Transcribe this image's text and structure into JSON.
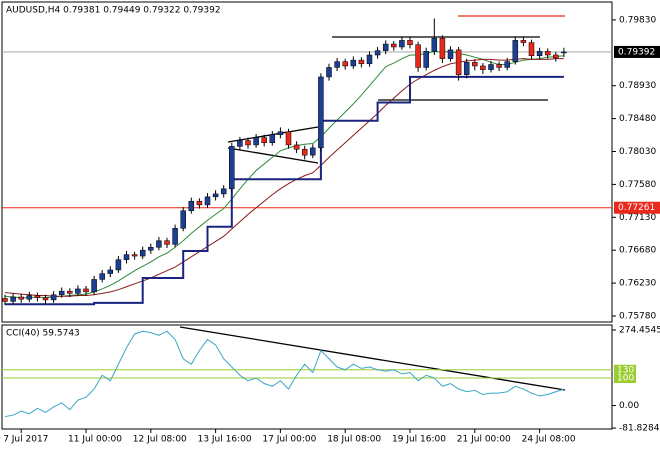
{
  "chart_data": {
    "type": "candlestick",
    "title": "AUDUSD,H4 0.79381 0.79449 0.79322 0.79392",
    "categories": [
      null,
      null,
      "7 Jul 2017",
      null,
      null,
      null,
      null,
      null,
      null,
      null,
      "11 Jul 00:00",
      null,
      null,
      null,
      null,
      null,
      null,
      null,
      "12 Jul 08:00",
      null,
      null,
      null,
      null,
      null,
      null,
      null,
      "13 Jul 16:00",
      null,
      null,
      null,
      null,
      null,
      null,
      null,
      "17 Jul 00:00",
      null,
      null,
      null,
      null,
      null,
      null,
      null,
      "18 Jul 08:00",
      null,
      null,
      null,
      null,
      null,
      null,
      null,
      "19 Jul 16:00",
      null,
      null,
      null,
      null,
      null,
      null,
      null,
      "21 Jul 00:00",
      null,
      null,
      null,
      null,
      null,
      null,
      null,
      "24 Jul 08:00",
      null,
      null,
      null
    ],
    "ohlc": [
      [
        0.7602,
        0.7607,
        0.7593,
        0.7598
      ],
      [
        0.7598,
        0.7609,
        0.7594,
        0.7604
      ],
      [
        0.7604,
        0.7608,
        0.7596,
        0.7601
      ],
      [
        0.7601,
        0.7611,
        0.7597,
        0.7606
      ],
      [
        0.7606,
        0.761,
        0.7598,
        0.7603
      ],
      [
        0.7603,
        0.7607,
        0.7594,
        0.76
      ],
      [
        0.76,
        0.7612,
        0.7596,
        0.7607
      ],
      [
        0.7607,
        0.7617,
        0.7603,
        0.7612
      ],
      [
        0.7612,
        0.7616,
        0.7604,
        0.7609
      ],
      [
        0.7609,
        0.762,
        0.7605,
        0.7615
      ],
      [
        0.7615,
        0.7619,
        0.7606,
        0.7611
      ],
      [
        0.7611,
        0.7633,
        0.7607,
        0.7628
      ],
      [
        0.7628,
        0.7641,
        0.7624,
        0.7636
      ],
      [
        0.7636,
        0.7646,
        0.7631,
        0.7641
      ],
      [
        0.7641,
        0.766,
        0.7637,
        0.7655
      ],
      [
        0.7655,
        0.7667,
        0.765,
        0.7662
      ],
      [
        0.7662,
        0.7666,
        0.7655,
        0.766
      ],
      [
        0.766,
        0.7673,
        0.7656,
        0.7668
      ],
      [
        0.7668,
        0.7677,
        0.7663,
        0.7672
      ],
      [
        0.7672,
        0.7686,
        0.7668,
        0.7681
      ],
      [
        0.7681,
        0.7685,
        0.7671,
        0.7676
      ],
      [
        0.7676,
        0.7703,
        0.7672,
        0.7698
      ],
      [
        0.7698,
        0.7727,
        0.7694,
        0.7722
      ],
      [
        0.7722,
        0.774,
        0.7718,
        0.7735
      ],
      [
        0.7735,
        0.7739,
        0.7725,
        0.773
      ],
      [
        0.773,
        0.7746,
        0.7726,
        0.7741
      ],
      [
        0.7741,
        0.775,
        0.7736,
        0.7745
      ],
      [
        0.7745,
        0.7757,
        0.774,
        0.7752
      ],
      [
        0.7752,
        0.7815,
        0.7748,
        0.781
      ],
      [
        0.781,
        0.7823,
        0.7805,
        0.7818
      ],
      [
        0.7818,
        0.7822,
        0.7807,
        0.7812
      ],
      [
        0.7812,
        0.7827,
        0.7808,
        0.7822
      ],
      [
        0.7822,
        0.7826,
        0.781,
        0.7815
      ],
      [
        0.7815,
        0.7831,
        0.7811,
        0.7826
      ],
      [
        0.7826,
        0.7836,
        0.7821,
        0.783
      ],
      [
        0.783,
        0.7834,
        0.7807,
        0.7812
      ],
      [
        0.7812,
        0.7817,
        0.7801,
        0.7806
      ],
      [
        0.7806,
        0.7811,
        0.7792,
        0.7798
      ],
      [
        0.7798,
        0.7813,
        0.7794,
        0.7808
      ],
      [
        0.7808,
        0.791,
        0.7803,
        0.7905
      ],
      [
        0.7905,
        0.7923,
        0.79,
        0.7918
      ],
      [
        0.7918,
        0.7931,
        0.7913,
        0.7926
      ],
      [
        0.7926,
        0.793,
        0.7915,
        0.792
      ],
      [
        0.792,
        0.7933,
        0.7916,
        0.7928
      ],
      [
        0.7928,
        0.7932,
        0.7918,
        0.7923
      ],
      [
        0.7923,
        0.794,
        0.7919,
        0.7935
      ],
      [
        0.7935,
        0.7946,
        0.793,
        0.7941
      ],
      [
        0.7941,
        0.7955,
        0.7936,
        0.795
      ],
      [
        0.795,
        0.7954,
        0.7941,
        0.7946
      ],
      [
        0.7946,
        0.796,
        0.7942,
        0.7955
      ],
      [
        0.7955,
        0.7959,
        0.7944,
        0.7949
      ],
      [
        0.7949,
        0.7953,
        0.7912,
        0.7918
      ],
      [
        0.7918,
        0.7945,
        0.7914,
        0.794
      ],
      [
        0.794,
        0.7985,
        0.7935,
        0.7958
      ],
      [
        0.7958,
        0.7962,
        0.7924,
        0.793
      ],
      [
        0.793,
        0.7947,
        0.7926,
        0.7942
      ],
      [
        0.7942,
        0.7946,
        0.79,
        0.7908
      ],
      [
        0.7908,
        0.793,
        0.7903,
        0.7925
      ],
      [
        0.7925,
        0.7929,
        0.7914,
        0.792
      ],
      [
        0.792,
        0.7924,
        0.7909,
        0.7915
      ],
      [
        0.7915,
        0.7927,
        0.7911,
        0.7922
      ],
      [
        0.7922,
        0.7926,
        0.7913,
        0.7918
      ],
      [
        0.7918,
        0.7931,
        0.7914,
        0.7926
      ],
      [
        0.7926,
        0.796,
        0.7922,
        0.7955
      ],
      [
        0.7955,
        0.7959,
        0.7947,
        0.7952
      ],
      [
        0.7952,
        0.7956,
        0.7929,
        0.7934
      ],
      [
        0.7934,
        0.7945,
        0.793,
        0.794
      ],
      [
        0.794,
        0.7944,
        0.793,
        0.7935
      ],
      [
        0.7935,
        0.7939,
        0.7926,
        0.7931
      ],
      [
        0.79381,
        0.79449,
        0.79322,
        0.79392
      ]
    ],
    "up_color": "#1c3f94",
    "down_color": "#e8291c",
    "lines": [
      {
        "color": "#2e8b3a",
        "step": false,
        "values": [
          0.7605,
          0.7604,
          0.7603,
          0.7603,
          0.7604,
          0.7603,
          0.7604,
          0.7605,
          0.7606,
          0.7607,
          0.7608,
          0.7611,
          0.7615,
          0.762,
          0.7626,
          0.7633,
          0.764,
          0.7646,
          0.7652,
          0.7659,
          0.7664,
          0.7672,
          0.7681,
          0.7691,
          0.77,
          0.7709,
          0.7717,
          0.7725,
          0.7738,
          0.7752,
          0.7765,
          0.7777,
          0.7786,
          0.7795,
          0.7804,
          0.7808,
          0.7811,
          0.7813,
          0.7814,
          0.7823,
          0.7835,
          0.7846,
          0.7857,
          0.7868,
          0.788,
          0.7893,
          0.7906,
          0.7919,
          0.7924,
          0.793,
          0.7935,
          0.7935,
          0.7937,
          0.794,
          0.7939,
          0.794,
          0.7937,
          0.7935,
          0.7932,
          0.7929,
          0.7925,
          0.7922,
          0.7922,
          0.7925,
          0.7928,
          0.7929,
          0.793,
          0.7932,
          0.7933,
          0.7934
        ]
      },
      {
        "color": "#8b1a1a",
        "step": false,
        "values": [
          0.761,
          0.7609,
          0.7608,
          0.7607,
          0.7606,
          0.7606,
          0.7605,
          0.7605,
          0.7605,
          0.7606,
          0.7606,
          0.7607,
          0.7609,
          0.7611,
          0.7614,
          0.7618,
          0.7622,
          0.7626,
          0.763,
          0.7635,
          0.764,
          0.7645,
          0.7652,
          0.7659,
          0.7666,
          0.7673,
          0.768,
          0.7687,
          0.7697,
          0.7707,
          0.7717,
          0.7726,
          0.7735,
          0.7744,
          0.7752,
          0.7759,
          0.7765,
          0.777,
          0.7774,
          0.7784,
          0.7795,
          0.7805,
          0.7815,
          0.7825,
          0.7835,
          0.7845,
          0.7855,
          0.7866,
          0.7876,
          0.7886,
          0.7895,
          0.7902,
          0.7908,
          0.7914,
          0.7919,
          0.7923,
          0.7925,
          0.7927,
          0.7928,
          0.7929,
          0.7929,
          0.7928,
          0.7928,
          0.7929,
          0.793,
          0.7929,
          0.7929,
          0.7929,
          0.793,
          0.793
        ]
      },
      {
        "color": "#1a237e",
        "step": true,
        "values": [
          0.7594,
          0.7594,
          0.7594,
          0.7594,
          0.7594,
          0.7594,
          0.7594,
          0.7594,
          0.7594,
          0.7594,
          0.7594,
          0.7596,
          0.7596,
          0.7596,
          0.7596,
          0.7596,
          0.7596,
          0.763,
          0.763,
          0.763,
          0.763,
          0.763,
          0.7667,
          0.7667,
          0.7667,
          0.77,
          0.77,
          0.77,
          0.7765,
          0.7765,
          0.7765,
          0.7765,
          0.7765,
          0.7765,
          0.7765,
          0.7765,
          0.7765,
          0.7765,
          0.7765,
          0.7845,
          0.7845,
          0.7845,
          0.7845,
          0.7845,
          0.7845,
          0.7845,
          0.787,
          0.787,
          0.787,
          0.787,
          0.7905,
          0.7905,
          0.7905,
          0.7905,
          0.7905,
          0.7905,
          0.7905,
          0.7905,
          0.7905,
          0.7905,
          0.7905,
          0.7905,
          0.7905,
          0.7905,
          0.7905,
          0.7905,
          0.7905,
          0.7905,
          0.7905,
          0.7905
        ]
      }
    ],
    "ylim": [
      0.75698,
      0.80075
    ],
    "yticks": [
      {
        "value": 0.7983,
        "label": "0.79830"
      },
      {
        "value": 0.7893,
        "label": "0.78930"
      },
      {
        "value": 0.7848,
        "label": "0.78480"
      },
      {
        "value": 0.7803,
        "label": "0.78030"
      },
      {
        "value": 0.7758,
        "label": "0.77580"
      },
      {
        "value": 0.7713,
        "label": "0.77130"
      },
      {
        "value": 0.7668,
        "label": "0.76680"
      },
      {
        "value": 0.7623,
        "label": "0.76230"
      },
      {
        "value": 0.7578,
        "label": "0.75780"
      }
    ],
    "last_price": {
      "value": 0.79392,
      "label": "0.79392"
    },
    "hline": {
      "value": 0.77261,
      "label": "0.77261",
      "color": "#e8291c"
    },
    "indicator": {
      "label": "CCI(40) 59.5743",
      "color": "#3aa6c8",
      "ylim": [
        -85.2,
        292.6
      ],
      "yticks": [
        274.4545,
        {
          "value": 0,
          "label": "0.00"
        },
        -81.8284
      ],
      "levels": [
        130,
        100
      ],
      "level_color": "#9acd32",
      "values": [
        -40,
        -35,
        -20,
        -30,
        -10,
        -25,
        -5,
        10,
        -15,
        20,
        30,
        60,
        110,
        90,
        150,
        210,
        260,
        270,
        265,
        255,
        270,
        240,
        170,
        150,
        200,
        240,
        220,
        170,
        140,
        110,
        90,
        100,
        80,
        70,
        90,
        60,
        110,
        150,
        120,
        200,
        170,
        140,
        130,
        150,
        135,
        140,
        130,
        125,
        130,
        115,
        120,
        90,
        110,
        100,
        70,
        80,
        60,
        50,
        55,
        40,
        45,
        45,
        50,
        70,
        60,
        45,
        35,
        40,
        50,
        59.5743
      ]
    }
  }
}
